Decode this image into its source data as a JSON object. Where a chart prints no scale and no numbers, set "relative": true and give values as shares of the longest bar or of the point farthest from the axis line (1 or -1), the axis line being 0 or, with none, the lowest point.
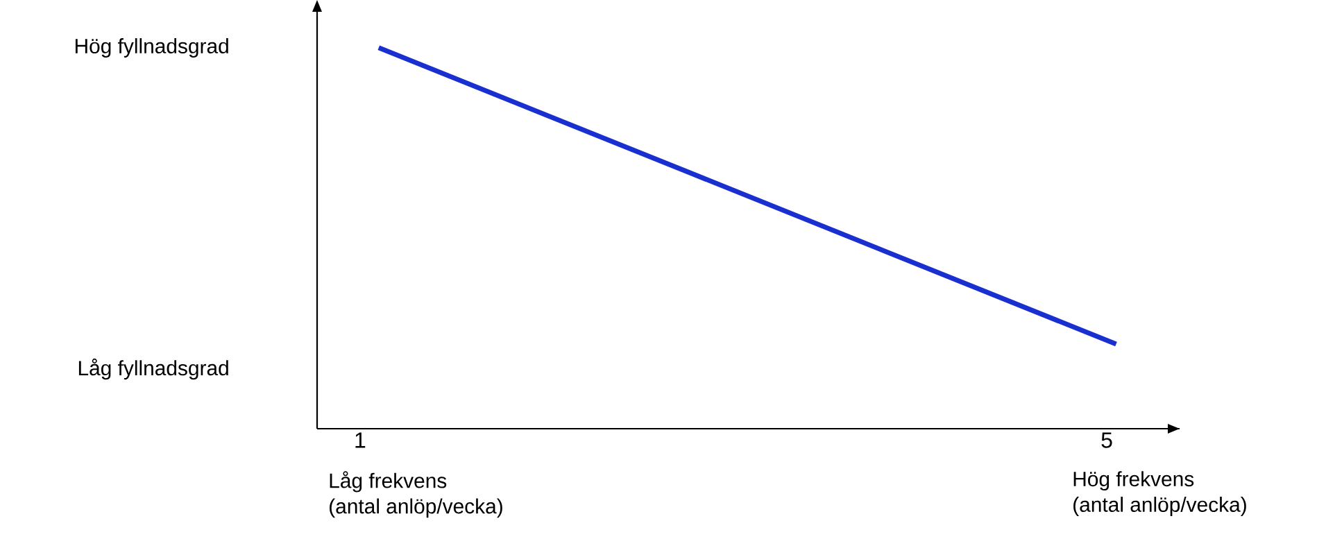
{
  "chart_data": {
    "type": "line",
    "relative": true,
    "x": [
      1.1,
      5.05
    ],
    "values": [
      1,
      0.222
    ],
    "color": "#1a2fd0",
    "xlim": [
      0.77,
      5.39
    ],
    "xticks": [
      1,
      5
    ],
    "tick_labels": "x",
    "marker": "none",
    "line_style": "solid",
    "annotations": [
      "Hög fyllnadsgrad",
      "Låg fyllnadsgrad",
      "Låg frekvens (antal anlöp/vecka)",
      "Hög frekvens (antal anlöp/vecka)"
    ]
  }
}
